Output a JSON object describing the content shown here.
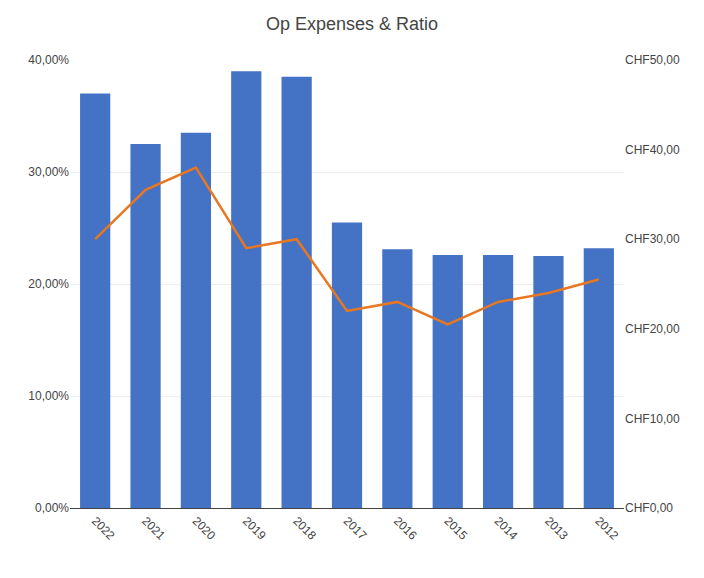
{
  "chart_data": {
    "type": "bar",
    "title": "Op Expenses & Ratio",
    "categories": [
      "2022",
      "2021",
      "2020",
      "2019",
      "2018",
      "2017",
      "2016",
      "2015",
      "2014",
      "2013",
      "2012"
    ],
    "series": [
      {
        "type": "bar",
        "color": "#4472C4",
        "values": [
          0.37,
          0.325,
          0.335,
          0.39,
          0.385,
          0.255,
          0.231,
          0.226,
          0.226,
          0.225,
          0.232
        ]
      },
      {
        "type": "line",
        "axis": "y2",
        "color": "#E87722",
        "values": [
          30.0,
          35.5,
          38.0,
          29.0,
          30.0,
          22.0,
          23.0,
          20.5,
          23.0,
          24.0,
          25.5
        ]
      }
    ],
    "ylim": [
      0,
      0.4
    ],
    "yticks": [
      {
        "value": 0.0,
        "label": "0,00%"
      },
      {
        "value": 0.1,
        "label": "10,00%"
      },
      {
        "value": 0.2,
        "label": "20,00%"
      },
      {
        "value": 0.3,
        "label": "30,00%"
      },
      {
        "value": 0.4,
        "label": "40,00%"
      }
    ],
    "y2lim": [
      0,
      50
    ],
    "y2ticks": [
      {
        "value": 0,
        "label": "CHF0,00"
      },
      {
        "value": 10,
        "label": "CHF10,00"
      },
      {
        "value": 20,
        "label": "CHF20,00"
      },
      {
        "value": 30,
        "label": "CHF30,00"
      },
      {
        "value": 40,
        "label": "CHF40,00"
      },
      {
        "value": 50,
        "label": "CHF50,00"
      }
    ],
    "grid": true
  }
}
